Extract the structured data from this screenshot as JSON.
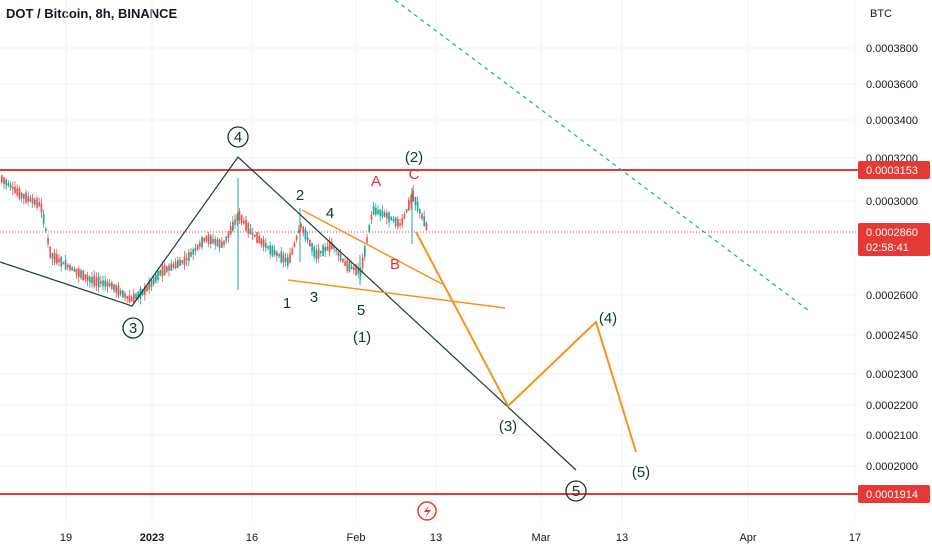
{
  "header": {
    "title": "DOT / Bitcoin, 8h, BINANCE"
  },
  "chart_data": {
    "type": "candlestick",
    "currency": "BTC",
    "x_ticks": [
      "19",
      "2023",
      "16",
      "Feb",
      "13",
      "Mar",
      "13",
      "Apr",
      "17"
    ],
    "y_ticks": [
      "0.0003800",
      "0.0003600",
      "0.0003400",
      "0.0003200",
      "0.0003000",
      "0.0002600",
      "0.0002450",
      "0.0002300",
      "0.0002200",
      "0.0002100",
      "0.0002000"
    ],
    "y_range": [
      0.000186,
      0.0004
    ],
    "y_scale": "log",
    "price_lines": [
      {
        "value": 0.0003153,
        "label": "0.0003153",
        "color": "#e53935"
      },
      {
        "value": 0.0001914,
        "label": "0.0001914",
        "color": "#e53935"
      }
    ],
    "current_price": {
      "value": 0.000286,
      "label": "0.0002860",
      "countdown": "02:58:41",
      "color": "#e53935"
    },
    "candle_colors": {
      "up": "#26a69a",
      "down": "#ef5350"
    },
    "wave_labels_dark": [
      "4",
      "3",
      "5",
      "2",
      "4",
      "1",
      "3",
      "5",
      "(1)",
      "(2)",
      "(3)",
      "(4)",
      "(5)"
    ],
    "wave_labels_red": [
      "A",
      "B",
      "C"
    ],
    "colors": {
      "projection": "#f7931a",
      "trendline": "#1e3b34",
      "dashed": "#26a69a",
      "accent": "#e53935"
    }
  }
}
